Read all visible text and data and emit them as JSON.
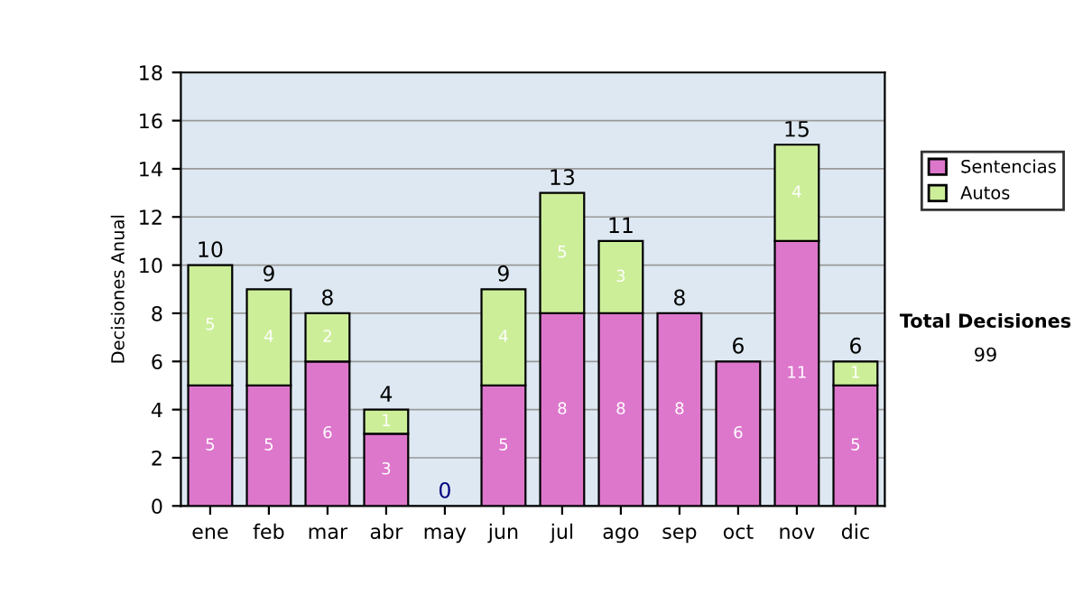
{
  "chart_data": {
    "type": "bar",
    "stacked": true,
    "ylabel": "Decisiones Anual",
    "categories": [
      "ene",
      "feb",
      "mar",
      "abr",
      "may",
      "jun",
      "jul",
      "ago",
      "sep",
      "oct",
      "nov",
      "dic"
    ],
    "series": [
      {
        "name": "Sentencias",
        "color": "#dd77cc",
        "values": [
          5,
          5,
          6,
          3,
          0,
          5,
          8,
          8,
          8,
          6,
          11,
          5
        ],
        "value_labels": [
          "5",
          "5",
          "6",
          "3",
          null,
          "5",
          "8",
          "8",
          "8",
          "6",
          "11",
          "5"
        ]
      },
      {
        "name": "Autos",
        "color": "#ccee99",
        "values": [
          5,
          4,
          2,
          1,
          0,
          4,
          5,
          3,
          0,
          0,
          4,
          1
        ],
        "value_labels": [
          "5",
          "4",
          "2",
          "1",
          null,
          "4",
          "5",
          "3",
          null,
          null,
          "4",
          "1"
        ]
      }
    ],
    "totals": [
      "10",
      "9",
      "8",
      "4",
      "0",
      "9",
      "13",
      "11",
      "8",
      "6",
      "15",
      "6"
    ],
    "ylim": [
      0,
      18
    ],
    "yticks": [
      0,
      2,
      4,
      6,
      8,
      10,
      12,
      14,
      16,
      18
    ],
    "grid": "y",
    "legend": "right",
    "annotations": [
      "Total Decisiones",
      "99"
    ]
  }
}
